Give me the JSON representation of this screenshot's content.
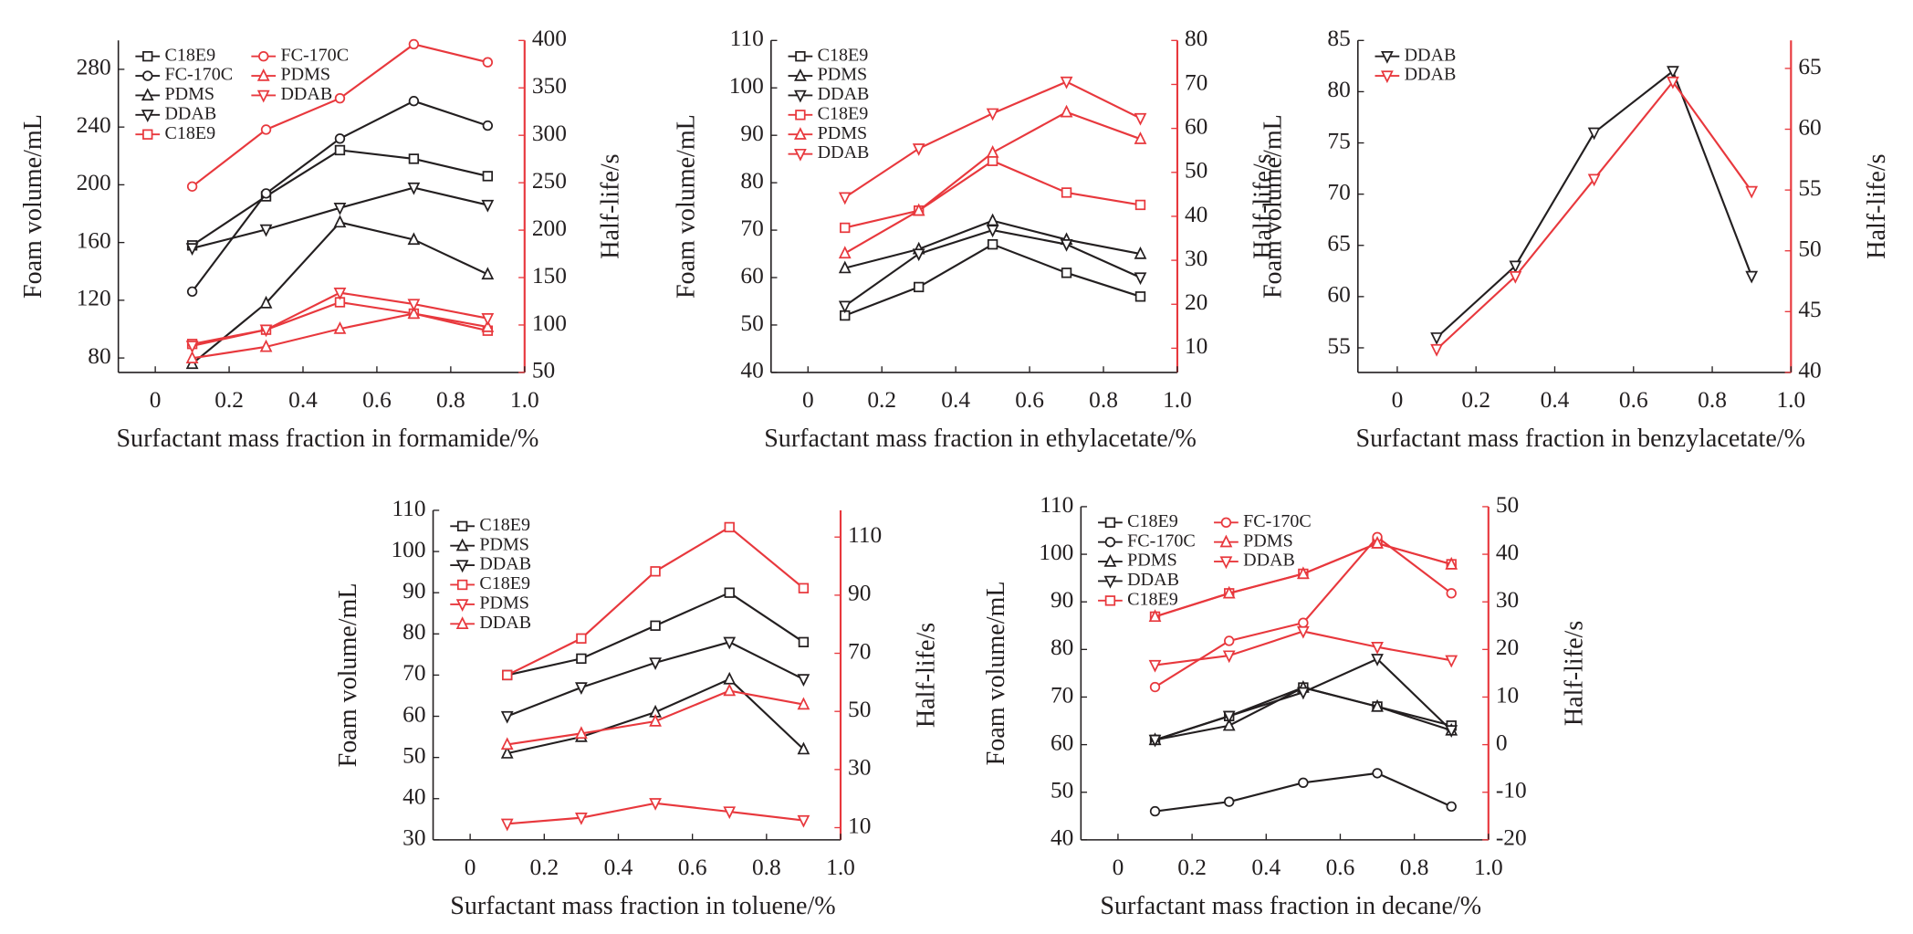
{
  "chart_data": [
    {
      "type": "line",
      "xlabel": "Surfactant mass fraction in formamide/%",
      "ylabel": "Foam volume/mL",
      "y2label": "Half-life/s",
      "x": [
        0.1,
        0.3,
        0.5,
        0.7,
        0.9
      ],
      "xlim": [
        -0.1,
        1
      ],
      "xticks": [
        0,
        0.2,
        0.4,
        0.6,
        0.8,
        {
          "value": 1,
          "label": "1.0"
        }
      ],
      "ylim": [
        70,
        300
      ],
      "yticks": [
        80,
        120,
        160,
        200,
        240,
        280
      ],
      "y2lim": [
        50,
        400
      ],
      "y2ticks": [
        50,
        100,
        150,
        200,
        250,
        300,
        350,
        400
      ],
      "legend": "upper left",
      "legend_rows": 5,
      "series": [
        {
          "name": "C18E9",
          "color": "#231f20",
          "marker": "square",
          "values": [
            158,
            192,
            224,
            218,
            206
          ]
        },
        {
          "name": "FC-170C",
          "color": "#231f20",
          "marker": "circle",
          "values": [
            126,
            194,
            232,
            258,
            241
          ]
        },
        {
          "name": "PDMS",
          "color": "#231f20",
          "marker": "up",
          "values": [
            76,
            118,
            174,
            162,
            138
          ]
        },
        {
          "name": "DDAB",
          "color": "#231f20",
          "marker": "down",
          "values": [
            156,
            169,
            184,
            198,
            186
          ]
        },
        {
          "name": "C18E9",
          "color": "#e8383d",
          "marker": "square",
          "axis": "y2",
          "values": [
            80,
            95,
            124,
            112,
            94
          ]
        },
        {
          "name": "FC-170C",
          "color": "#e8383d",
          "marker": "circle",
          "axis": "y2",
          "values": [
            246,
            306,
            339,
            396,
            377
          ]
        },
        {
          "name": "PDMS",
          "color": "#e8383d",
          "marker": "up",
          "axis": "y2",
          "values": [
            65,
            77,
            96,
            112,
            98
          ]
        },
        {
          "name": "DDAB",
          "color": "#e8383d",
          "marker": "down",
          "axis": "y2",
          "values": [
            78,
            95,
            134,
            122,
            107
          ]
        }
      ]
    },
    {
      "type": "line",
      "xlabel": "Surfactant mass fraction in ethylacetate/%",
      "ylabel": "Foam volume/mL",
      "y2label": "Half-life/s",
      "x": [
        0.1,
        0.3,
        0.5,
        0.7,
        0.9
      ],
      "xlim": [
        -0.1,
        1
      ],
      "xticks": [
        0,
        0.2,
        0.4,
        0.6,
        0.8,
        {
          "value": 1,
          "label": "1.0"
        }
      ],
      "ylim": [
        40,
        110
      ],
      "yticks": [
        40,
        50,
        60,
        70,
        80,
        90,
        100,
        110
      ],
      "y2lim": [
        4.5,
        80
      ],
      "y2ticks": [
        10,
        20,
        30,
        40,
        50,
        60,
        70,
        80
      ],
      "legend": "upper left",
      "series": [
        {
          "name": "C18E9",
          "color": "#231f20",
          "marker": "square",
          "values": [
            52,
            58,
            67,
            61,
            56
          ]
        },
        {
          "name": "PDMS",
          "color": "#231f20",
          "marker": "up",
          "values": [
            62,
            66,
            72,
            68,
            65
          ]
        },
        {
          "name": "DDAB",
          "color": "#231f20",
          "marker": "down",
          "values": [
            54,
            65,
            70,
            67,
            60
          ]
        },
        {
          "name": "C18E9",
          "color": "#e8383d",
          "marker": "square",
          "axis": "y2",
          "values": [
            37.4,
            41.3,
            52.6,
            45.4,
            42.6
          ]
        },
        {
          "name": "PDMS",
          "color": "#e8383d",
          "marker": "up",
          "axis": "y2",
          "values": [
            31.6,
            41.3,
            54.5,
            63.7,
            57.6
          ]
        },
        {
          "name": "DDAB",
          "color": "#e8383d",
          "marker": "down",
          "axis": "y2",
          "values": [
            44.3,
            55.4,
            63.4,
            70.6,
            62.3
          ]
        }
      ]
    },
    {
      "type": "line",
      "xlabel": "Surfactant mass fraction in benzylacetate/%",
      "ylabel": "Foam volume/mL",
      "y2label": "Half-life/s",
      "x": [
        0.1,
        0.3,
        0.5,
        0.7,
        0.9
      ],
      "xlim": [
        -0.1,
        1
      ],
      "xticks": [
        0,
        0.2,
        0.4,
        0.6,
        0.8,
        {
          "value": 1,
          "label": "1.0"
        }
      ],
      "ylim": [
        52.6,
        85
      ],
      "yticks": [
        55,
        60,
        65,
        70,
        75,
        80,
        85
      ],
      "y2lim": [
        40,
        67.3
      ],
      "y2ticks": [
        40,
        45,
        50,
        55,
        60,
        65
      ],
      "legend": "upper left",
      "series": [
        {
          "name": "DDAB",
          "color": "#231f20",
          "marker": "down",
          "values": [
            56,
            63,
            76,
            82,
            62
          ]
        },
        {
          "name": "DDAB",
          "color": "#e8383d",
          "marker": "down",
          "axis": "y2",
          "values": [
            41.9,
            47.9,
            55.9,
            63.9,
            54.9
          ]
        }
      ]
    },
    {
      "type": "line",
      "xlabel": "Surfactant mass fraction in toluene/%",
      "ylabel": "Foam volume/mL",
      "y2label": "Half-life/s",
      "x": [
        0.1,
        0.3,
        0.5,
        0.7,
        0.9
      ],
      "xlim": [
        -0.1,
        1
      ],
      "xticks": [
        0,
        0.2,
        0.4,
        0.6,
        0.8,
        {
          "value": 1,
          "label": "1.0"
        }
      ],
      "ylim": [
        30,
        110
      ],
      "yticks": [
        30,
        40,
        50,
        60,
        70,
        80,
        90,
        100,
        110
      ],
      "y2lim": [
        5.8,
        119.2
      ],
      "y2ticks": [
        10,
        30,
        50,
        70,
        90,
        110
      ],
      "legend": "upper left",
      "series": [
        {
          "name": "C18E9",
          "color": "#231f20",
          "marker": "square",
          "values": [
            70,
            74,
            82,
            90,
            78
          ]
        },
        {
          "name": "PDMS",
          "color": "#231f20",
          "marker": "up",
          "values": [
            51,
            55,
            61,
            69,
            52
          ]
        },
        {
          "name": "DDAB",
          "color": "#231f20",
          "marker": "down",
          "values": [
            60,
            67,
            73,
            78,
            69
          ]
        },
        {
          "name": "C18E9",
          "color": "#e8383d",
          "marker": "square",
          "axis": "y2",
          "values": [
            62.5,
            75.1,
            98.2,
            113.4,
            92.4
          ]
        },
        {
          "name": "PDMS",
          "color": "#e8383d",
          "marker": "down",
          "axis": "y2",
          "values": [
            11.3,
            13.4,
            18.4,
            15.5,
            12.5
          ]
        },
        {
          "name": "DDAB",
          "color": "#e8383d",
          "marker": "up",
          "axis": "y2",
          "values": [
            38.6,
            42.4,
            46.6,
            57.1,
            52.4
          ]
        }
      ]
    },
    {
      "type": "line",
      "xlabel": "Surfactant mass fraction in decane/%",
      "ylabel": "Foam volume/mL",
      "y2label": "Half-life/s",
      "x": [
        0.1,
        0.3,
        0.5,
        0.7,
        0.9
      ],
      "xlim": [
        -0.1,
        1
      ],
      "xticks": [
        0,
        0.2,
        0.4,
        0.6,
        0.8,
        {
          "value": 1,
          "label": "1.0"
        }
      ],
      "ylim": [
        40,
        110
      ],
      "yticks": [
        40,
        50,
        60,
        70,
        80,
        90,
        100,
        110
      ],
      "y2lim": [
        -20,
        50
      ],
      "y2ticks": [
        -20,
        -10,
        0,
        10,
        20,
        30,
        40,
        50
      ],
      "legend": "upper left",
      "legend_rows": 5,
      "series": [
        {
          "name": "C18E9",
          "color": "#231f20",
          "marker": "square",
          "values": [
            61,
            66,
            72,
            68,
            64
          ]
        },
        {
          "name": "FC-170C",
          "color": "#231f20",
          "marker": "circle",
          "values": [
            46,
            48,
            52,
            54,
            47
          ]
        },
        {
          "name": "PDMS",
          "color": "#231f20",
          "marker": "up",
          "values": [
            61,
            64,
            72,
            68,
            63
          ]
        },
        {
          "name": "DDAB",
          "color": "#231f20",
          "marker": "down",
          "values": [
            61,
            66,
            71,
            78,
            63
          ]
        },
        {
          "name": "C18E9",
          "color": "#e8383d",
          "marker": "square",
          "axis": "y2",
          "values": [
            26.9,
            31.8,
            35.9,
            42.3,
            37.9
          ]
        },
        {
          "name": "FC-170C",
          "color": "#e8383d",
          "marker": "circle",
          "axis": "y2",
          "values": [
            12.1,
            21.8,
            25.6,
            43.6,
            31.8
          ]
        },
        {
          "name": "PDMS",
          "color": "#e8383d",
          "marker": "up",
          "axis": "y2",
          "values": [
            26.9,
            31.8,
            35.9,
            42.3,
            37.9
          ]
        },
        {
          "name": "DDAB",
          "color": "#e8383d",
          "marker": "down",
          "axis": "y2",
          "values": [
            16.7,
            18.7,
            23.8,
            20.5,
            17.7
          ]
        }
      ]
    }
  ]
}
